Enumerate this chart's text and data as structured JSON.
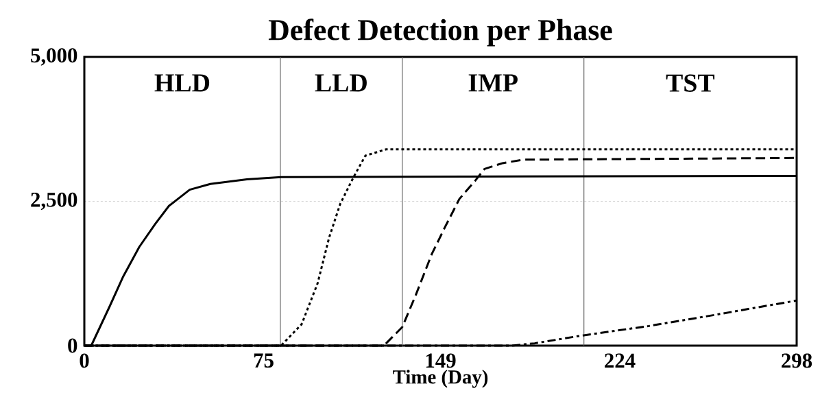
{
  "chart_data": {
    "type": "line",
    "title": "Defect Detection per Phase",
    "xlabel": "Time (Day)",
    "xlim": [
      0,
      298
    ],
    "ylim": [
      0,
      5000
    ],
    "xticks": [
      0,
      75,
      149,
      224,
      298
    ],
    "yticks": [
      {
        "value": 0,
        "label": "0"
      },
      {
        "value": 2500,
        "label": "2,500"
      },
      {
        "value": 5000,
        "label": "5,000"
      }
    ],
    "grid": "y",
    "marker": "none",
    "series": [
      {
        "color": "#000000",
        "line_style": "solid",
        "x": [
          0,
          2.9,
          10.6,
          16.3,
          23.0,
          29.7,
          35.4,
          44.1,
          52.7,
          68.0,
          82.3,
          298
        ],
        "values": [
          0,
          0,
          680,
          1200,
          1710,
          2110,
          2420,
          2700,
          2800,
          2880,
          2920,
          2940
        ]
      },
      {
        "color": "#000000",
        "line_style": "dotted",
        "x": [
          0,
          82.3,
          90.9,
          97.6,
          102.4,
          107.1,
          112.9,
          117.6,
          126.3,
          298
        ],
        "values": [
          0,
          0,
          370,
          1080,
          1870,
          2460,
          2940,
          3290,
          3400,
          3400
        ]
      },
      {
        "color": "#000000",
        "line_style": "dashed",
        "x": [
          0,
          125.3,
          133.0,
          138.7,
          145.4,
          151.1,
          156.9,
          163.6,
          167.4,
          175.0,
          183.6,
          298
        ],
        "values": [
          0,
          0,
          320,
          880,
          1590,
          2070,
          2540,
          2860,
          3060,
          3160,
          3220,
          3250
        ]
      },
      {
        "color": "#000000",
        "line_style": "dashdot",
        "x": [
          0,
          178.8,
          188.4,
          207.5,
          236.2,
          264.9,
          284.0,
          298
        ],
        "values": [
          0,
          0,
          40,
          170,
          340,
          540,
          680,
          780
        ]
      }
    ],
    "ref_lines": [
      {
        "axis": "x",
        "value": 82,
        "color": "#666666"
      },
      {
        "axis": "x",
        "value": 133,
        "color": "#666666"
      },
      {
        "axis": "x",
        "value": 209,
        "color": "#666666"
      }
    ],
    "annotations": [
      "HLD",
      "LLD",
      "IMP",
      "TST"
    ]
  }
}
